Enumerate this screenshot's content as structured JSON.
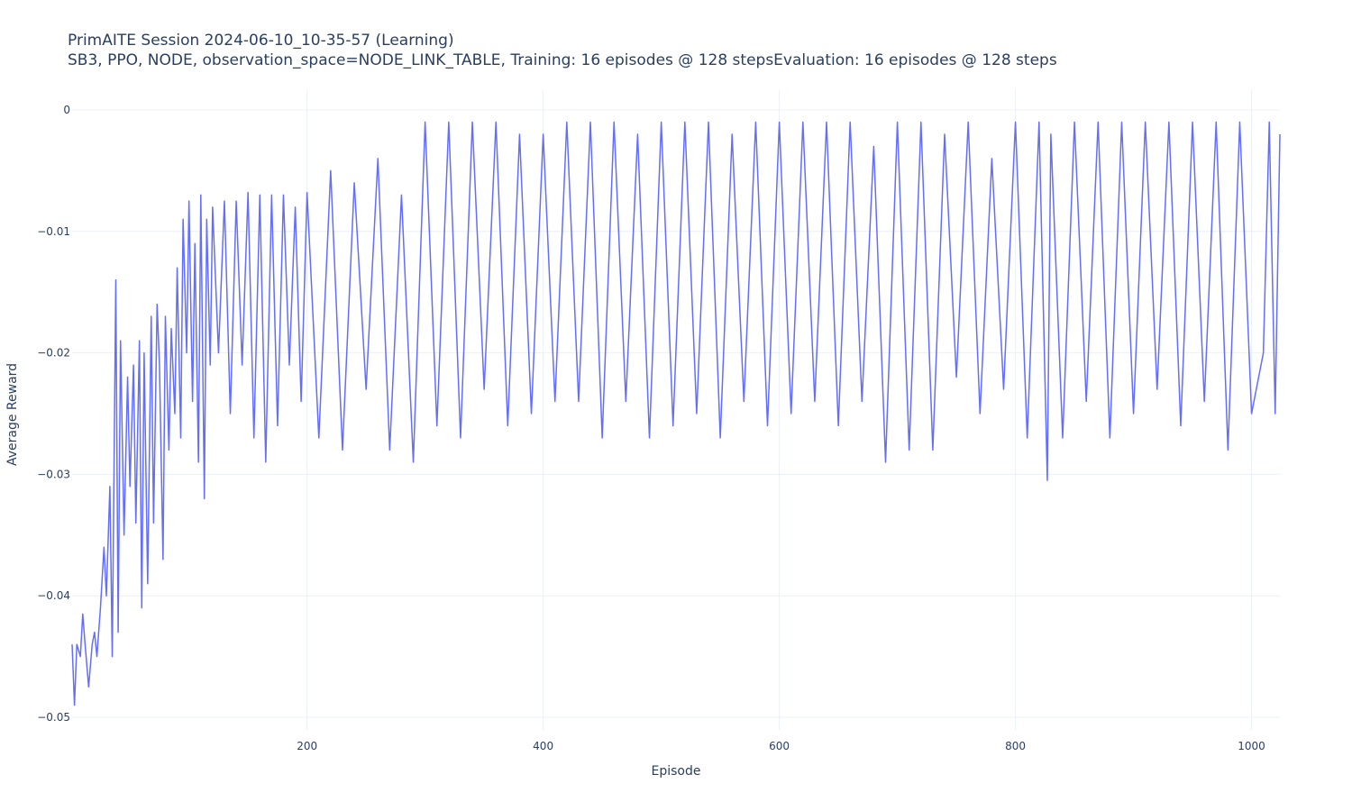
{
  "chart_data": {
    "type": "line",
    "title": "PrimAITE Session 2024-06-10_10-35-57 (Learning)",
    "subtitle": "SB3, PPO, NODE, observation_space=NODE_LINK_TABLE, Training: 16 episodes @ 128 stepsEvaluation: 16 episodes @ 128 steps",
    "xlabel": "Episode",
    "ylabel": "Average Reward",
    "xlim": [
      1,
      1024
    ],
    "ylim": [
      -0.05,
      0
    ],
    "x_ticks": [
      200,
      400,
      600,
      800,
      1000
    ],
    "x_tick_labels": [
      "200",
      "400",
      "600",
      "800",
      "1000"
    ],
    "y_ticks": [
      0,
      -0.01,
      -0.02,
      -0.03,
      -0.04,
      -0.05
    ],
    "y_tick_labels": [
      "0",
      "−0.01",
      "−0.02",
      "−0.03",
      "−0.04",
      "−0.05"
    ],
    "grid": true,
    "legend": false,
    "series": [
      {
        "color": "#636efa",
        "points_note": "sampled points (episode, average reward) tracing the visible curve envelope",
        "x": [
          1,
          3,
          5,
          8,
          10,
          12,
          15,
          18,
          20,
          22,
          25,
          28,
          30,
          33,
          35,
          38,
          40,
          42,
          45,
          48,
          50,
          53,
          55,
          58,
          60,
          62,
          65,
          68,
          70,
          73,
          75,
          78,
          80,
          83,
          85,
          88,
          90,
          93,
          95,
          98,
          100,
          103,
          105,
          108,
          110,
          113,
          115,
          118,
          120,
          125,
          130,
          135,
          140,
          145,
          150,
          155,
          160,
          165,
          170,
          175,
          180,
          185,
          190,
          195,
          200,
          210,
          220,
          230,
          240,
          250,
          260,
          270,
          280,
          290,
          300,
          310,
          320,
          330,
          340,
          350,
          360,
          370,
          380,
          390,
          400,
          410,
          420,
          430,
          440,
          450,
          460,
          470,
          480,
          490,
          500,
          510,
          520,
          530,
          540,
          550,
          560,
          570,
          580,
          590,
          600,
          610,
          620,
          630,
          640,
          650,
          660,
          670,
          680,
          690,
          700,
          710,
          720,
          730,
          740,
          750,
          760,
          770,
          780,
          790,
          800,
          810,
          820,
          827,
          830,
          840,
          850,
          860,
          870,
          880,
          890,
          900,
          910,
          920,
          930,
          940,
          950,
          960,
          970,
          980,
          990,
          1000,
          1010,
          1015,
          1020,
          1024
        ],
        "y": [
          -0.044,
          -0.049,
          -0.044,
          -0.045,
          -0.0415,
          -0.044,
          -0.0475,
          -0.044,
          -0.043,
          -0.045,
          -0.041,
          -0.036,
          -0.04,
          -0.031,
          -0.045,
          -0.014,
          -0.043,
          -0.019,
          -0.035,
          -0.022,
          -0.031,
          -0.021,
          -0.034,
          -0.019,
          -0.041,
          -0.02,
          -0.039,
          -0.017,
          -0.034,
          -0.016,
          -0.021,
          -0.037,
          -0.017,
          -0.028,
          -0.018,
          -0.025,
          -0.013,
          -0.027,
          -0.009,
          -0.02,
          -0.0075,
          -0.024,
          -0.011,
          -0.029,
          -0.007,
          -0.032,
          -0.009,
          -0.021,
          -0.008,
          -0.02,
          -0.0075,
          -0.025,
          -0.0075,
          -0.021,
          -0.0068,
          -0.027,
          -0.007,
          -0.029,
          -0.007,
          -0.026,
          -0.007,
          -0.021,
          -0.008,
          -0.024,
          -0.0068,
          -0.027,
          -0.005,
          -0.028,
          -0.006,
          -0.023,
          -0.004,
          -0.028,
          -0.007,
          -0.029,
          -0.001,
          -0.026,
          -0.001,
          -0.027,
          -0.001,
          -0.023,
          -0.001,
          -0.026,
          -0.002,
          -0.025,
          -0.002,
          -0.024,
          -0.001,
          -0.024,
          -0.001,
          -0.027,
          -0.001,
          -0.024,
          -0.002,
          -0.027,
          -0.001,
          -0.026,
          -0.001,
          -0.025,
          -0.001,
          -0.027,
          -0.002,
          -0.024,
          -0.001,
          -0.026,
          -0.001,
          -0.025,
          -0.001,
          -0.024,
          -0.001,
          -0.026,
          -0.001,
          -0.024,
          -0.003,
          -0.029,
          -0.001,
          -0.028,
          -0.001,
          -0.028,
          -0.002,
          -0.022,
          -0.001,
          -0.025,
          -0.004,
          -0.023,
          -0.001,
          -0.027,
          -0.001,
          -0.0305,
          -0.002,
          -0.027,
          -0.001,
          -0.024,
          -0.001,
          -0.027,
          -0.001,
          -0.025,
          -0.001,
          -0.023,
          -0.001,
          -0.026,
          -0.001,
          -0.024,
          -0.001,
          -0.028,
          -0.001,
          -0.025,
          -0.02,
          -0.001,
          -0.025,
          -0.002
        ]
      }
    ]
  }
}
